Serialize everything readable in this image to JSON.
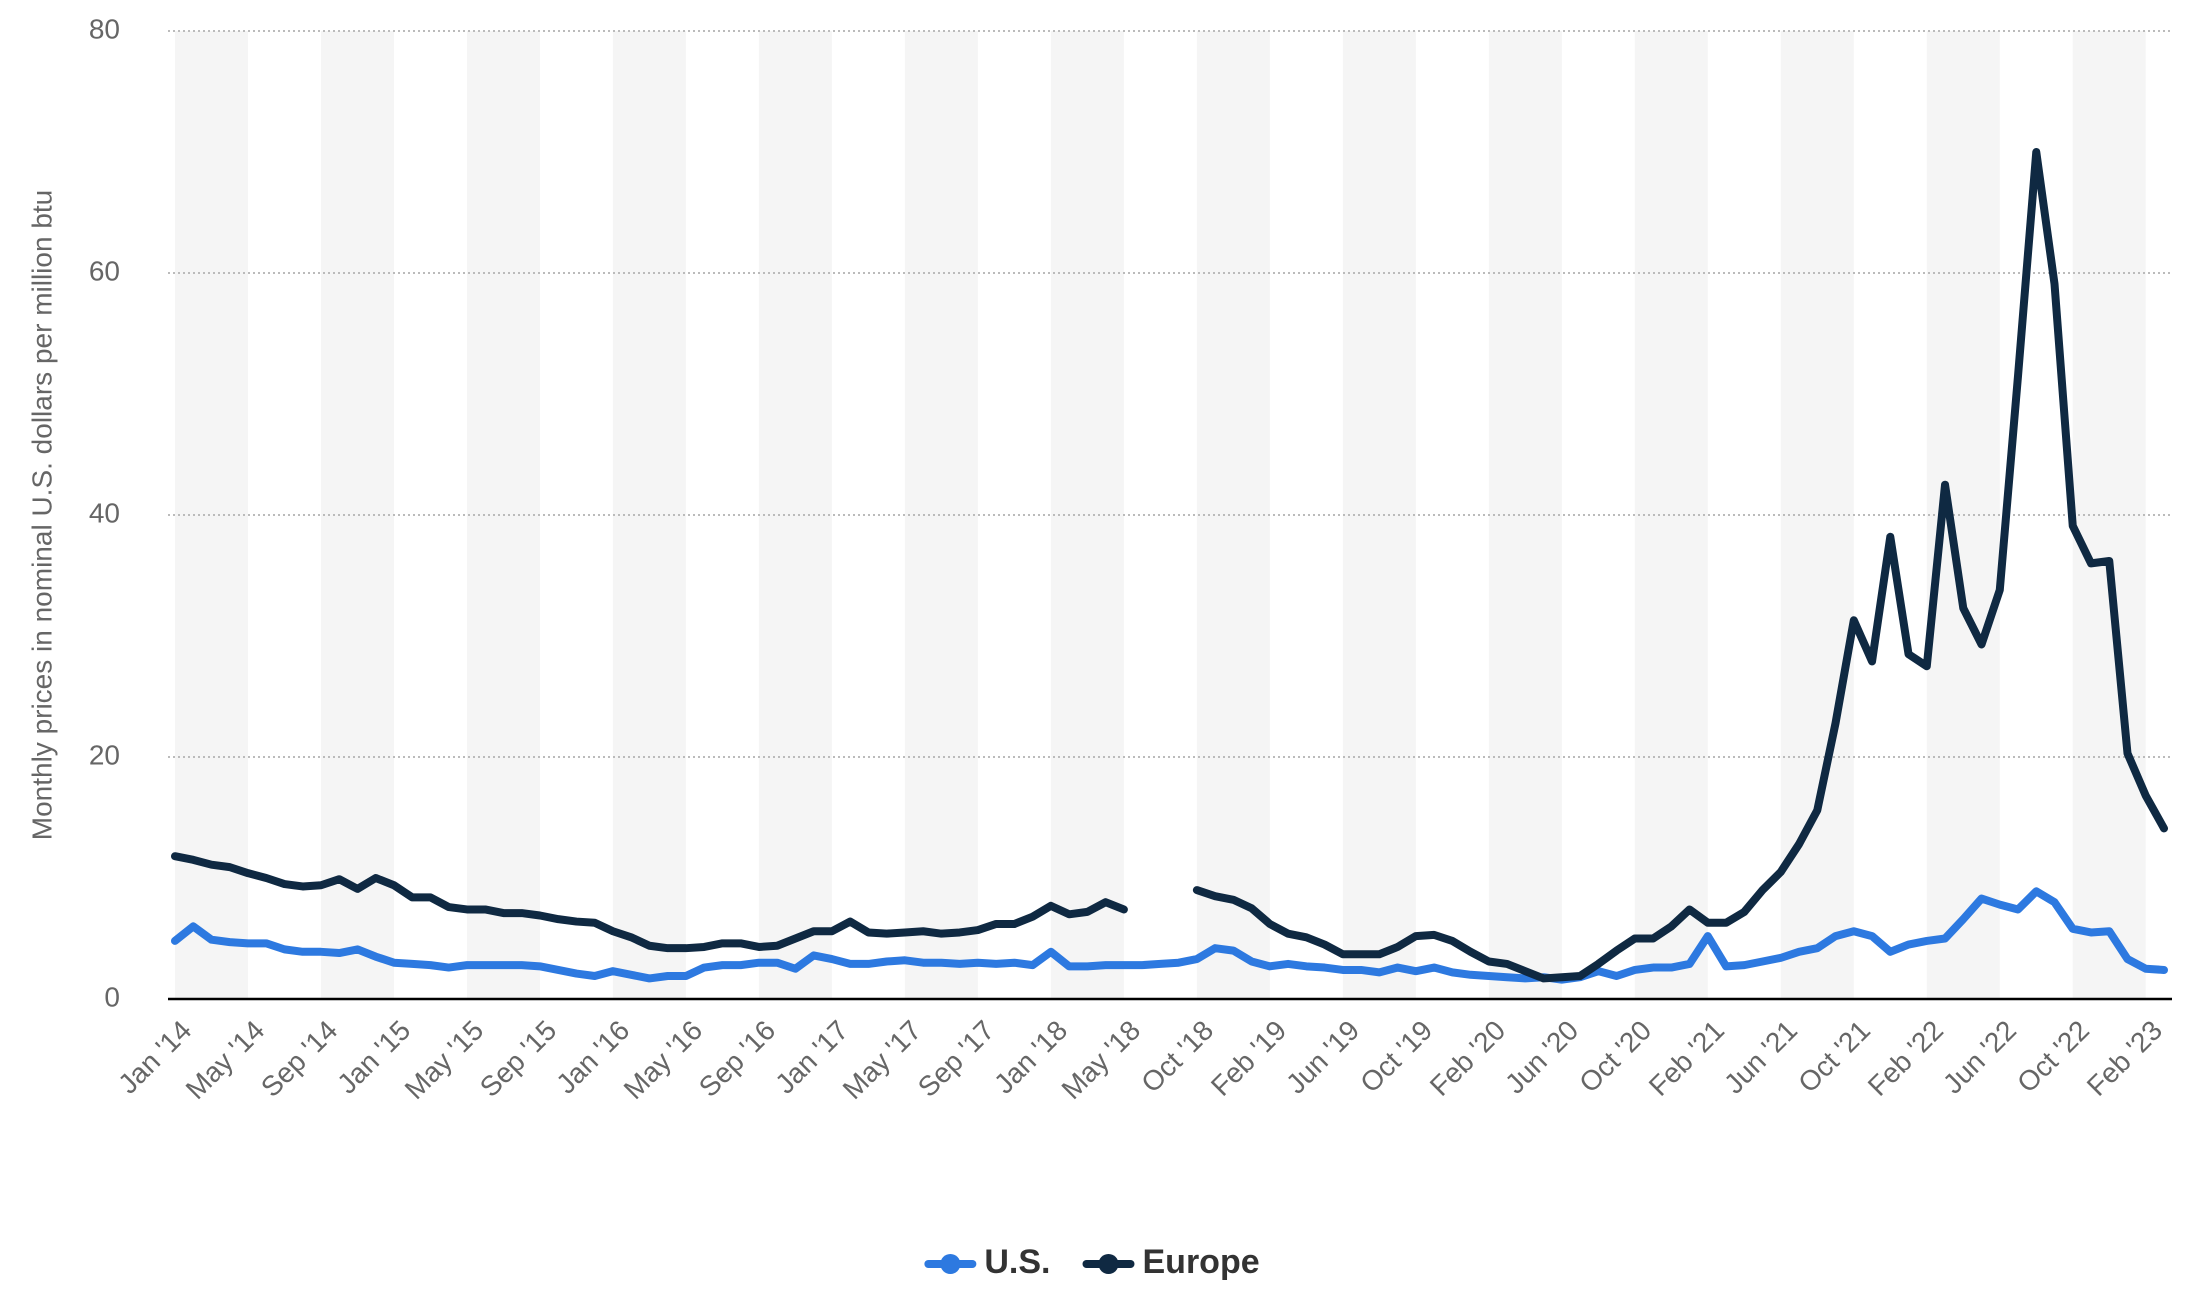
{
  "chart_data": {
    "type": "line",
    "y_label": "Monthly prices in nominal U.S. dollars per million btu",
    "categories": [
      "Jan '14",
      null,
      null,
      null,
      "May '14",
      null,
      null,
      null,
      "Sep '14",
      null,
      null,
      null,
      "Jan '15",
      null,
      null,
      null,
      "May '15",
      null,
      null,
      null,
      "Sep '15",
      null,
      null,
      null,
      "Jan '16",
      null,
      null,
      null,
      "May '16",
      null,
      null,
      null,
      "Sep '16",
      null,
      null,
      null,
      "Jan '17",
      null,
      null,
      null,
      "May '17",
      null,
      null,
      null,
      "Sep '17",
      null,
      null,
      null,
      "Jan '18",
      null,
      null,
      null,
      "May '18",
      null,
      null,
      null,
      "Oct '18",
      null,
      null,
      null,
      "Feb '19",
      null,
      null,
      null,
      "Jun '19",
      null,
      null,
      null,
      "Oct '19",
      null,
      null,
      null,
      "Feb '20",
      null,
      null,
      null,
      "Jun '20",
      null,
      null,
      null,
      "Oct '20",
      null,
      null,
      null,
      "Feb '21",
      null,
      null,
      null,
      "Jun '21",
      null,
      null,
      null,
      "Oct '21",
      null,
      null,
      null,
      "Feb '22",
      null,
      null,
      null,
      "Jun '22",
      null,
      null,
      null,
      "Oct '22",
      null,
      null,
      null,
      "Feb '23",
      null
    ],
    "series": [
      {
        "name": "U.S.",
        "color": "#2d79e0",
        "values": [
          4.8,
          6.0,
          4.9,
          4.7,
          4.6,
          4.6,
          4.1,
          3.9,
          3.9,
          3.8,
          4.1,
          3.5,
          3.0,
          2.9,
          2.8,
          2.6,
          2.8,
          2.8,
          2.8,
          2.8,
          2.7,
          2.4,
          2.1,
          1.9,
          2.3,
          2.0,
          1.7,
          1.9,
          1.9,
          2.6,
          2.8,
          2.8,
          3.0,
          3.0,
          2.5,
          3.6,
          3.3,
          2.9,
          2.9,
          3.1,
          3.2,
          3.0,
          3.0,
          2.9,
          3.0,
          2.9,
          3.0,
          2.8,
          3.9,
          2.7,
          2.7,
          2.8,
          2.8,
          2.8,
          2.9,
          3.0,
          3.3,
          4.2,
          4.0,
          3.1,
          2.7,
          2.9,
          2.7,
          2.6,
          2.4,
          2.4,
          2.2,
          2.6,
          2.3,
          2.6,
          2.2,
          2.0,
          1.9,
          1.8,
          1.7,
          1.8,
          1.6,
          1.8,
          2.3,
          1.9,
          2.4,
          2.6,
          2.6,
          2.9,
          5.2,
          2.7,
          2.8,
          3.1,
          3.4,
          3.9,
          4.2,
          5.2,
          5.6,
          5.2,
          3.9,
          4.5,
          4.8,
          5.0,
          6.6,
          8.3,
          7.8,
          7.4,
          8.9,
          8.0,
          5.8,
          5.5,
          5.6,
          3.3,
          2.5,
          2.4
        ]
      },
      {
        "name": "Europe",
        "color": "#0f2942",
        "values": [
          11.8,
          11.5,
          11.1,
          10.9,
          10.4,
          10.0,
          9.5,
          9.3,
          9.4,
          9.9,
          9.1,
          10.0,
          9.4,
          8.4,
          8.4,
          7.6,
          7.4,
          7.4,
          7.1,
          7.1,
          6.9,
          6.6,
          6.4,
          6.3,
          5.6,
          5.1,
          4.4,
          4.2,
          4.2,
          4.3,
          4.6,
          4.6,
          4.3,
          4.4,
          5.0,
          5.6,
          5.6,
          6.4,
          5.5,
          5.4,
          5.5,
          5.6,
          5.4,
          5.5,
          5.7,
          6.2,
          6.2,
          6.8,
          7.7,
          7.0,
          7.2,
          8.0,
          7.4,
          null,
          null,
          null,
          9.0,
          8.5,
          8.2,
          7.5,
          6.2,
          5.4,
          5.1,
          4.5,
          3.7,
          3.7,
          3.7,
          4.3,
          5.2,
          5.3,
          4.8,
          3.9,
          3.1,
          2.9,
          2.3,
          1.7,
          1.8,
          1.9,
          2.9,
          4.0,
          5.0,
          5.0,
          6.0,
          7.4,
          6.3,
          6.3,
          7.2,
          9.0,
          10.5,
          12.8,
          15.6,
          22.8,
          31.3,
          27.9,
          38.2,
          28.5,
          27.5,
          42.5,
          32.3,
          29.3,
          33.8,
          51.5,
          70.0,
          59.1,
          39.1,
          36.0,
          36.2,
          20.3,
          16.8,
          14.1
        ]
      }
    ],
    "ylim": [
      0,
      80
    ],
    "yticks": [
      0,
      20,
      40,
      60,
      80
    ],
    "grid": true,
    "legend": "bottom"
  }
}
